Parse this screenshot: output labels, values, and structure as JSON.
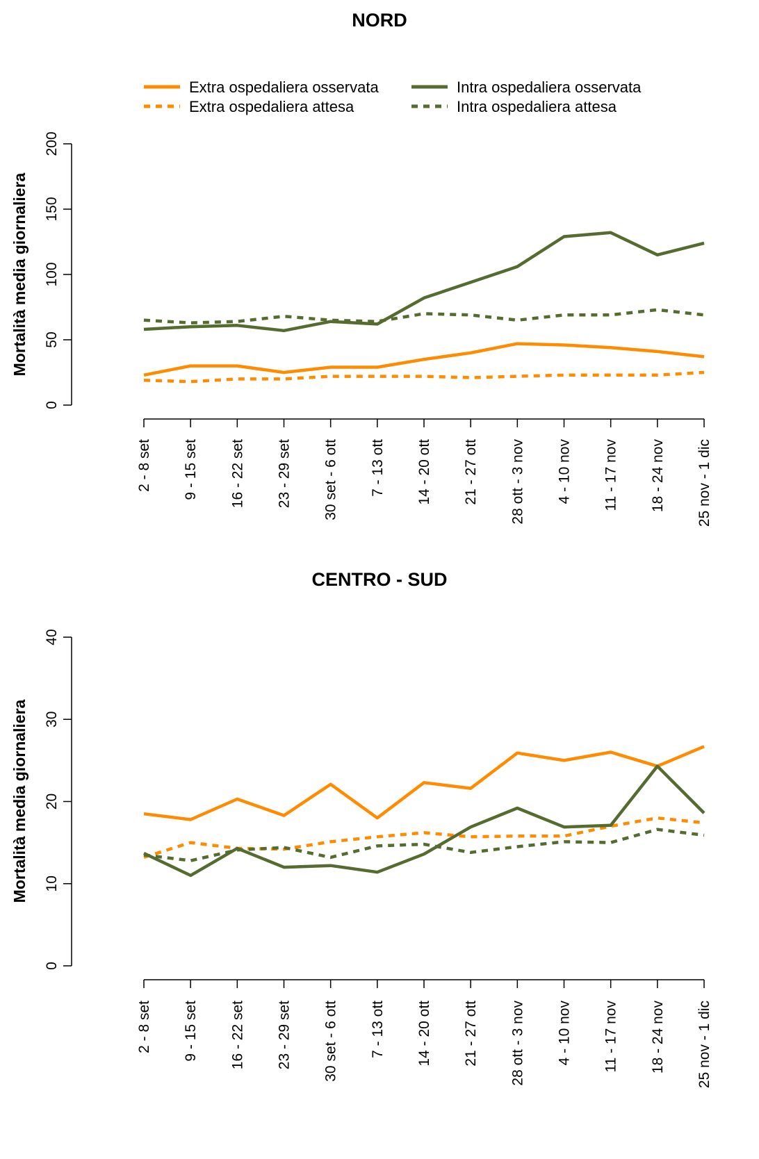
{
  "legend": {
    "items": [
      {
        "label": "Extra ospedaliera osservata",
        "color": "#FF8C00",
        "style": "solid"
      },
      {
        "label": "Extra ospedaliera attesa",
        "color": "#FF8C00",
        "style": "dashed"
      },
      {
        "label": "Intra ospedaliera osservata",
        "color": "#556B2F",
        "style": "solid"
      },
      {
        "label": "Intra ospedaliera attesa",
        "color": "#556B2F",
        "style": "dashed"
      }
    ]
  },
  "chart_data": [
    {
      "type": "line",
      "title": "NORD",
      "xlabel": "",
      "ylabel": "Mortalità media giornaliera",
      "ylim": [
        0,
        200
      ],
      "yticks": [
        0,
        50,
        100,
        150,
        200
      ],
      "grid": false,
      "legend": "top-center",
      "categories": [
        "2 - 8 set",
        "9 - 15 set",
        "16 - 22 set",
        "23 - 29 set",
        "30 set - 6 ott",
        "7 - 13 ott",
        "14 - 20 ott",
        "21 - 27 ott",
        "28 ott - 3 nov",
        "4 - 10 nov",
        "11 - 17 nov",
        "18 - 24 nov",
        "25 nov - 1 dic"
      ],
      "series": [
        {
          "name": "Extra ospedaliera osservata",
          "color": "#FF8C00",
          "style": "solid",
          "values": [
            23,
            30,
            30,
            25,
            29,
            29,
            35,
            40,
            47,
            46,
            44,
            41,
            37
          ]
        },
        {
          "name": "Extra ospedaliera attesa",
          "color": "#FF8C00",
          "style": "dashed",
          "values": [
            19,
            18,
            20,
            20,
            22,
            22,
            22,
            21,
            22,
            23,
            23,
            23,
            25
          ]
        },
        {
          "name": "Intra ospedaliera osservata",
          "color": "#556B2F",
          "style": "solid",
          "values": [
            58,
            60,
            61,
            57,
            64,
            62,
            82,
            94,
            106,
            129,
            132,
            115,
            124
          ]
        },
        {
          "name": "Intra ospedaliera attesa",
          "color": "#556B2F",
          "style": "dashed",
          "values": [
            65,
            63,
            64,
            68,
            65,
            64,
            70,
            69,
            65,
            69,
            69,
            73,
            69
          ]
        }
      ]
    },
    {
      "type": "line",
      "title": "CENTRO - SUD",
      "xlabel": "",
      "ylabel": "Mortalità media giornaliera",
      "ylim": [
        0,
        40
      ],
      "yticks": [
        0,
        10,
        20,
        30,
        40
      ],
      "grid": false,
      "legend": "none",
      "categories": [
        "2 - 8 set",
        "9 - 15 set",
        "16 - 22 set",
        "23 - 29 set",
        "30 set - 6 ott",
        "7 - 13 ott",
        "14 - 20 ott",
        "21 - 27 ott",
        "28 ott - 3 nov",
        "4 - 10 nov",
        "11 - 17 nov",
        "18 - 24 nov",
        "25 nov - 1 dic"
      ],
      "series": [
        {
          "name": "Extra ospedaliera osservata",
          "color": "#FF8C00",
          "style": "solid",
          "values": [
            18.5,
            17.8,
            20.3,
            18.3,
            22.1,
            18.0,
            22.3,
            21.6,
            25.9,
            25.0,
            26.0,
            24.3,
            26.7
          ]
        },
        {
          "name": "Extra ospedaliera attesa",
          "color": "#FF8C00",
          "style": "dashed",
          "values": [
            13.2,
            15.0,
            14.3,
            14.2,
            15.1,
            15.7,
            16.2,
            15.7,
            15.8,
            15.8,
            17.0,
            18.0,
            17.4
          ]
        },
        {
          "name": "Intra ospedaliera osservata",
          "color": "#556B2F",
          "style": "solid",
          "values": [
            13.7,
            11.0,
            14.3,
            12.0,
            12.2,
            11.4,
            13.6,
            16.9,
            19.2,
            16.9,
            17.1,
            24.3,
            18.6
          ]
        },
        {
          "name": "Intra ospedaliera attesa",
          "color": "#556B2F",
          "style": "dashed",
          "values": [
            13.5,
            12.8,
            14.1,
            14.4,
            13.2,
            14.6,
            14.8,
            13.8,
            14.5,
            15.1,
            15.0,
            16.6,
            15.9
          ]
        }
      ]
    }
  ]
}
